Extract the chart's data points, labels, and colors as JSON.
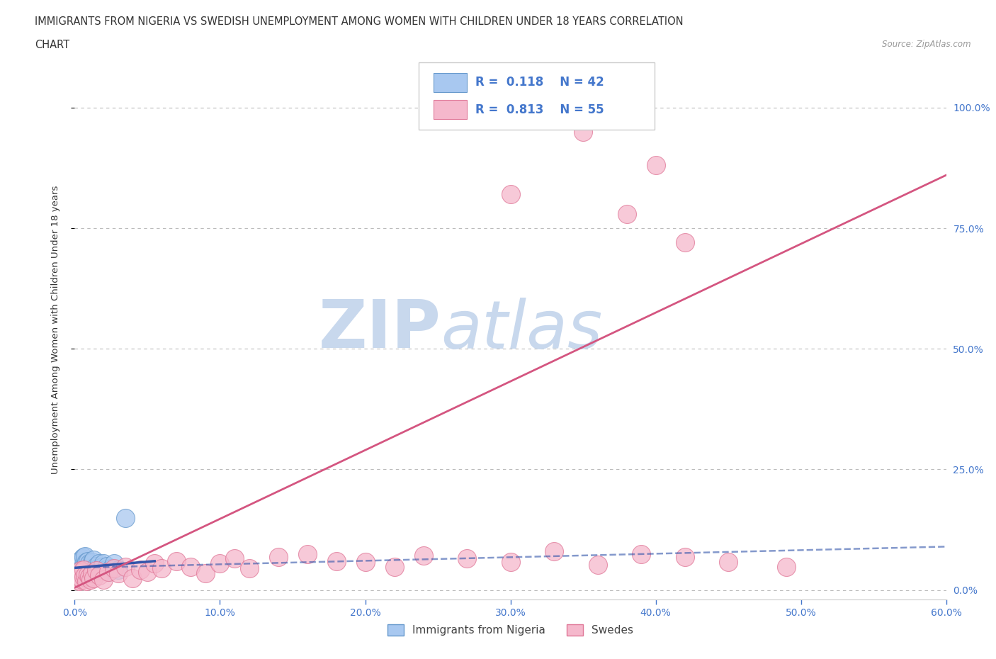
{
  "title_line1": "IMMIGRANTS FROM NIGERIA VS SWEDISH UNEMPLOYMENT AMONG WOMEN WITH CHILDREN UNDER 18 YEARS CORRELATION",
  "title_line2": "CHART",
  "source_text": "Source: ZipAtlas.com",
  "ylabel": "Unemployment Among Women with Children Under 18 years",
  "xlim": [
    0.0,
    0.6
  ],
  "ylim": [
    -0.02,
    1.1
  ],
  "xtick_labels": [
    "0.0%",
    "",
    "",
    "",
    "",
    "",
    "",
    "",
    "",
    "",
    "10.0%",
    "",
    "",
    "",
    "",
    "",
    "",
    "",
    "",
    "",
    "20.0%",
    "",
    "",
    "",
    "",
    "",
    "",
    "",
    "",
    "",
    "30.0%",
    "",
    "",
    "",
    "",
    "",
    "",
    "",
    "",
    "",
    "40.0%",
    "",
    "",
    "",
    "",
    "",
    "",
    "",
    "",
    "",
    "50.0%",
    "",
    "",
    "",
    "",
    "",
    "",
    "",
    "",
    "",
    "60.0%"
  ],
  "xtick_values": [
    0.0,
    0.01,
    0.02,
    0.03,
    0.04,
    0.05,
    0.06,
    0.07,
    0.08,
    0.09,
    0.1,
    0.11,
    0.12,
    0.13,
    0.14,
    0.15,
    0.16,
    0.17,
    0.18,
    0.19,
    0.2,
    0.21,
    0.22,
    0.23,
    0.24,
    0.25,
    0.26,
    0.27,
    0.28,
    0.29,
    0.3,
    0.31,
    0.32,
    0.33,
    0.34,
    0.35,
    0.36,
    0.37,
    0.38,
    0.39,
    0.4,
    0.41,
    0.42,
    0.43,
    0.44,
    0.45,
    0.46,
    0.47,
    0.48,
    0.49,
    0.5,
    0.51,
    0.52,
    0.53,
    0.54,
    0.55,
    0.56,
    0.57,
    0.58,
    0.59,
    0.6
  ],
  "ytick_labels": [
    "0.0%",
    "25.0%",
    "50.0%",
    "75.0%",
    "100.0%"
  ],
  "ytick_values": [
    0.0,
    0.25,
    0.5,
    0.75,
    1.0
  ],
  "legend1_R": "0.118",
  "legend1_N": "42",
  "legend2_R": "0.813",
  "legend2_N": "55",
  "nigeria_color": "#a8c8f0",
  "nigeria_edge_color": "#6699cc",
  "swedes_color": "#f5b8cc",
  "swedes_edge_color": "#e07898",
  "nigeria_line_color": "#3355aa",
  "swedes_line_color": "#d45580",
  "background_color": "#ffffff",
  "watermark_color": "#c8d8ed",
  "grid_color": "#cccccc",
  "title_color": "#333333",
  "axis_label_color": "#333333",
  "tick_label_color_blue": "#4477cc",
  "nigeria_x": [
    0.001,
    0.002,
    0.002,
    0.003,
    0.003,
    0.003,
    0.004,
    0.004,
    0.005,
    0.005,
    0.005,
    0.006,
    0.006,
    0.006,
    0.007,
    0.007,
    0.007,
    0.008,
    0.008,
    0.009,
    0.009,
    0.01,
    0.01,
    0.011,
    0.012,
    0.012,
    0.013,
    0.013,
    0.014,
    0.015,
    0.016,
    0.017,
    0.018,
    0.019,
    0.02,
    0.021,
    0.022,
    0.023,
    0.025,
    0.027,
    0.03,
    0.035
  ],
  "nigeria_y": [
    0.03,
    0.04,
    0.055,
    0.035,
    0.048,
    0.06,
    0.038,
    0.052,
    0.032,
    0.045,
    0.065,
    0.033,
    0.05,
    0.068,
    0.04,
    0.055,
    0.07,
    0.042,
    0.058,
    0.035,
    0.06,
    0.038,
    0.055,
    0.045,
    0.04,
    0.058,
    0.042,
    0.062,
    0.038,
    0.05,
    0.045,
    0.055,
    0.04,
    0.048,
    0.055,
    0.042,
    0.05,
    0.038,
    0.045,
    0.055,
    0.042,
    0.15
  ],
  "swedes_x": [
    0.001,
    0.002,
    0.002,
    0.003,
    0.003,
    0.004,
    0.004,
    0.005,
    0.005,
    0.006,
    0.006,
    0.007,
    0.008,
    0.009,
    0.01,
    0.011,
    0.012,
    0.013,
    0.015,
    0.017,
    0.02,
    0.023,
    0.027,
    0.03,
    0.035,
    0.04,
    0.045,
    0.05,
    0.055,
    0.06,
    0.07,
    0.08,
    0.09,
    0.1,
    0.11,
    0.12,
    0.14,
    0.16,
    0.18,
    0.2,
    0.22,
    0.24,
    0.27,
    0.3,
    0.33,
    0.36,
    0.39,
    0.42,
    0.45,
    0.49,
    0.3,
    0.35,
    0.38,
    0.4,
    0.42
  ],
  "swedes_y": [
    0.025,
    0.03,
    0.02,
    0.018,
    0.035,
    0.025,
    0.04,
    0.022,
    0.038,
    0.028,
    0.042,
    0.03,
    0.018,
    0.032,
    0.028,
    0.022,
    0.035,
    0.025,
    0.04,
    0.03,
    0.022,
    0.038,
    0.045,
    0.035,
    0.048,
    0.025,
    0.042,
    0.038,
    0.055,
    0.045,
    0.06,
    0.048,
    0.035,
    0.055,
    0.065,
    0.045,
    0.068,
    0.075,
    0.06,
    0.058,
    0.048,
    0.072,
    0.065,
    0.058,
    0.08,
    0.052,
    0.075,
    0.068,
    0.058,
    0.048,
    0.82,
    0.95,
    0.78,
    0.88,
    0.72
  ],
  "nigeria_trend_x": [
    0.0,
    0.055
  ],
  "nigeria_trend_y": [
    0.046,
    0.06
  ],
  "swedes_trend_x": [
    0.0,
    0.6
  ],
  "swedes_trend_y": [
    0.005,
    0.86
  ]
}
